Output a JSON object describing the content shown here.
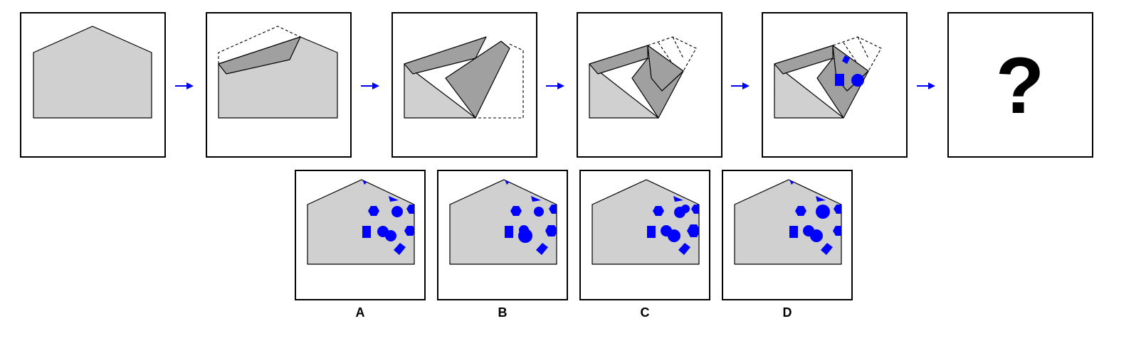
{
  "puzzle": {
    "question_mark": "?",
    "options": [
      {
        "label": "A"
      },
      {
        "label": "B"
      },
      {
        "label": "C"
      },
      {
        "label": "D"
      }
    ]
  },
  "colors": {
    "ink": "#0000ff",
    "paper": "#d0d0d0",
    "flap": "#a0a0a0",
    "frame": "#000000"
  }
}
